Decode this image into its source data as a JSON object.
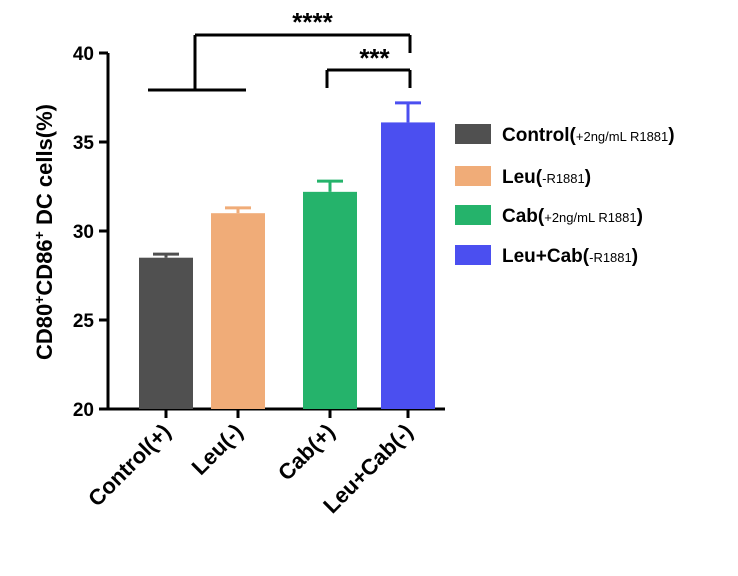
{
  "chart_data": {
    "type": "bar",
    "ylabel": {
      "parts": [
        {
          "text": "CD80",
          "sup": false
        },
        {
          "text": "+",
          "sup": true
        },
        {
          "text": "CD86",
          "sup": false
        },
        {
          "text": "+",
          "sup": true
        },
        {
          "text": " DC cells(%)",
          "sup": false
        }
      ]
    },
    "ylim": [
      20,
      40
    ],
    "yticks": [
      20,
      25,
      30,
      35,
      40
    ],
    "categories": [
      "Control(+)",
      "Leu(-)",
      "Cab(+)",
      "Leu+Cab(-)"
    ],
    "values": [
      28.5,
      31.0,
      32.2,
      36.1
    ],
    "errors": [
      0.2,
      0.3,
      0.6,
      1.1
    ],
    "colors": [
      "#505050",
      "#f0ac78",
      "#25b36b",
      "#4b4ff0"
    ],
    "legend": {
      "position": "right",
      "entries": [
        {
          "main": "Control(",
          "small": "+2ng/mL R1881",
          "close": ")"
        },
        {
          "main": "Leu(",
          "small": "-R1881",
          "close": ")"
        },
        {
          "main": "Cab(",
          "small": "+2ng/mL R1881",
          "close": ")"
        },
        {
          "main": "Leu+Cab(",
          "small": "-R1881",
          "close": ")"
        }
      ]
    },
    "significance": [
      {
        "label": "****",
        "from_group": [
          0,
          1
        ],
        "to": 3
      },
      {
        "label": "***",
        "from": 2,
        "to": 3
      }
    ]
  }
}
